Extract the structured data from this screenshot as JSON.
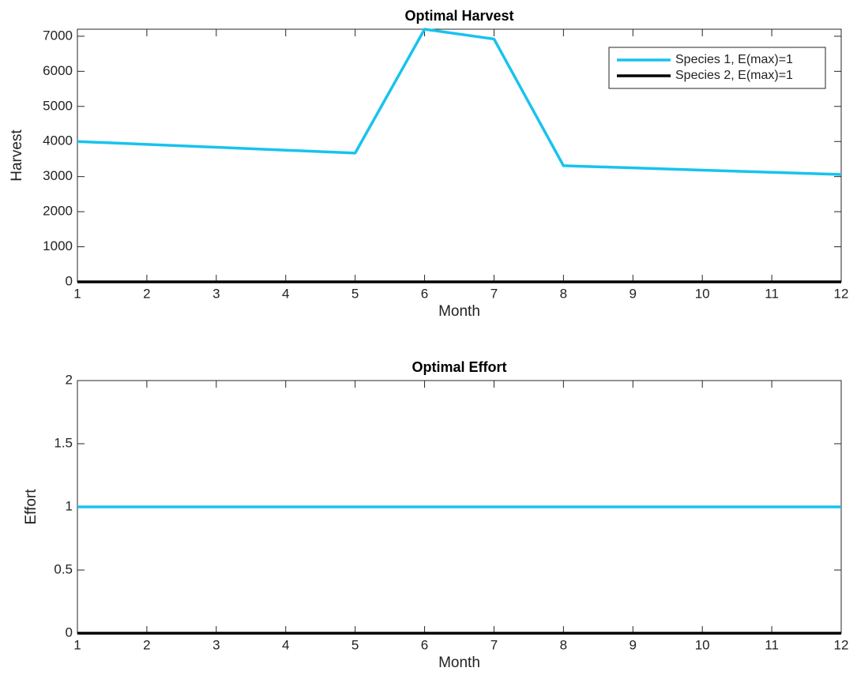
{
  "chart_data": [
    {
      "type": "line",
      "title": "Optimal Harvest",
      "xlabel": "Month",
      "ylabel": "Harvest",
      "x": [
        1,
        2,
        3,
        4,
        5,
        6,
        7,
        8,
        9,
        10,
        11,
        12
      ],
      "series": [
        {
          "name": "Species 1, E(max)=1",
          "color": "#17c3ee",
          "values": [
            4000,
            3918,
            3835,
            3753,
            3670,
            7200,
            6920,
            3310,
            3248,
            3185,
            3123,
            3060
          ]
        },
        {
          "name": "Species 2, E(max)=1",
          "color": "#000000",
          "values": [
            0,
            0,
            0,
            0,
            0,
            0,
            0,
            0,
            0,
            0,
            0,
            0
          ]
        }
      ],
      "xlim": [
        1,
        12
      ],
      "xticks": [
        1,
        2,
        3,
        4,
        5,
        6,
        7,
        8,
        9,
        10,
        11,
        12
      ],
      "ylim": [
        0,
        7200
      ],
      "yticks": [
        0,
        1000,
        2000,
        3000,
        4000,
        5000,
        6000,
        7000
      ],
      "legend": "upper right"
    },
    {
      "type": "line",
      "title": "Optimal Effort",
      "xlabel": "Month",
      "ylabel": "Effort",
      "x": [
        1,
        2,
        3,
        4,
        5,
        6,
        7,
        8,
        9,
        10,
        11,
        12
      ],
      "series": [
        {
          "color": "#17c3ee",
          "values": [
            1,
            1,
            1,
            1,
            1,
            1,
            1,
            1,
            1,
            1,
            1,
            1
          ]
        },
        {
          "color": "#000000",
          "values": [
            0,
            0,
            0,
            0,
            0,
            0,
            0,
            0,
            0,
            0,
            0,
            0
          ]
        }
      ],
      "xlim": [
        1,
        12
      ],
      "xticks": [
        1,
        2,
        3,
        4,
        5,
        6,
        7,
        8,
        9,
        10,
        11,
        12
      ],
      "ylim": [
        0,
        2
      ],
      "yticks": [
        0,
        0.5,
        1,
        1.5,
        2
      ]
    }
  ]
}
